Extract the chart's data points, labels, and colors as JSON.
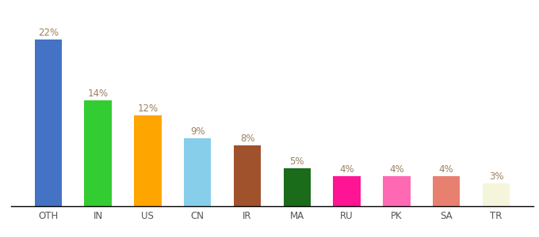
{
  "categories": [
    "OTH",
    "IN",
    "US",
    "CN",
    "IR",
    "MA",
    "RU",
    "PK",
    "SA",
    "TR"
  ],
  "values": [
    22,
    14,
    12,
    9,
    8,
    5,
    4,
    4,
    4,
    3
  ],
  "bar_colors": [
    "#4472C4",
    "#33CC33",
    "#FFA500",
    "#87CEEB",
    "#A0522D",
    "#1A6B1A",
    "#FF1493",
    "#FF69B4",
    "#E88070",
    "#F5F5DC"
  ],
  "labels": [
    "22%",
    "14%",
    "12%",
    "9%",
    "8%",
    "5%",
    "4%",
    "4%",
    "4%",
    "3%"
  ],
  "ylim": [
    0,
    25
  ],
  "background_color": "#ffffff",
  "label_color": "#9B8060",
  "label_fontsize": 8.5,
  "tick_fontsize": 8.5,
  "tick_color": "#555555",
  "bar_width": 0.55
}
